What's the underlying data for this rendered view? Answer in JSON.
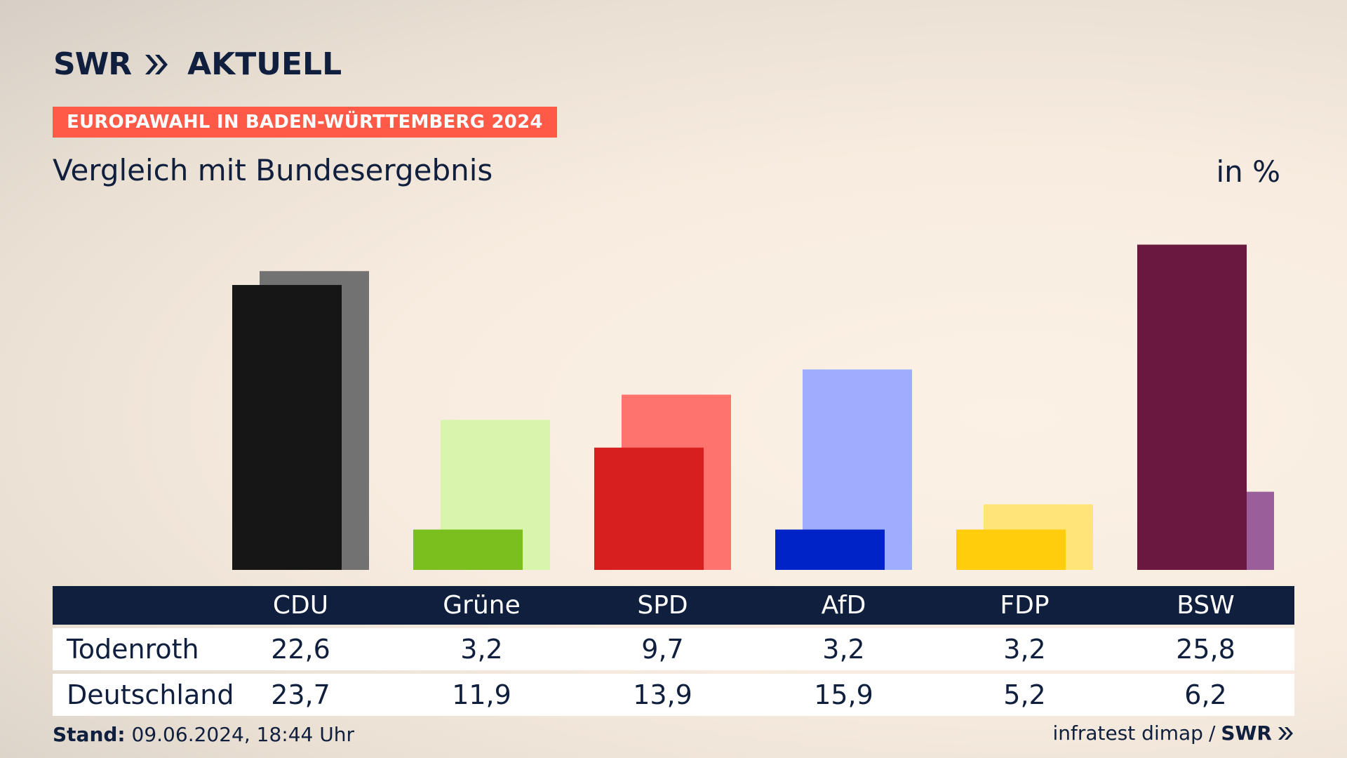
{
  "header": {
    "logo_swr": "SWR",
    "logo_aktuell": "AKTUELL",
    "badge": "EUROPAWAHL IN BADEN-WÜRTTEMBERG 2024",
    "subtitle": "Vergleich mit Bundesergebnis",
    "unit": "in %"
  },
  "table": {
    "rows": [
      {
        "label": "Todenroth"
      },
      {
        "label": "Deutschland"
      }
    ]
  },
  "footer": {
    "stand_label": "Stand:",
    "stand_value": "09.06.2024, 18:44 Uhr",
    "source": "infratest dimap",
    "separator": "/",
    "logo": "SWR"
  },
  "chart_data": {
    "type": "bar",
    "categories": [
      "CDU",
      "Grüne",
      "SPD",
      "AfD",
      "FDP",
      "BSW"
    ],
    "series": [
      {
        "name": "Todenroth",
        "values": [
          22.6,
          3.2,
          9.7,
          3.2,
          3.2,
          25.8
        ]
      },
      {
        "name": "Deutschland",
        "values": [
          23.7,
          11.9,
          13.9,
          15.9,
          5.2,
          6.2
        ]
      }
    ],
    "value_labels": {
      "Todenroth": [
        "22,6",
        "3,2",
        "9,7",
        "3,2",
        "3,2",
        "25,8"
      ],
      "Deutschland": [
        "23,7",
        "11,9",
        "13,9",
        "15,9",
        "5,2",
        "6,2"
      ]
    },
    "colors": {
      "primary": [
        "#161616",
        "#7abf1e",
        "#d71f1f",
        "#0023c8",
        "#ffcd0b",
        "#6b1840"
      ],
      "secondary": [
        "#727272",
        "#d8f5ab",
        "#ff736e",
        "#9fadff",
        "#ffe478",
        "#9a5e9a"
      ]
    },
    "ylim": [
      0,
      27
    ]
  }
}
